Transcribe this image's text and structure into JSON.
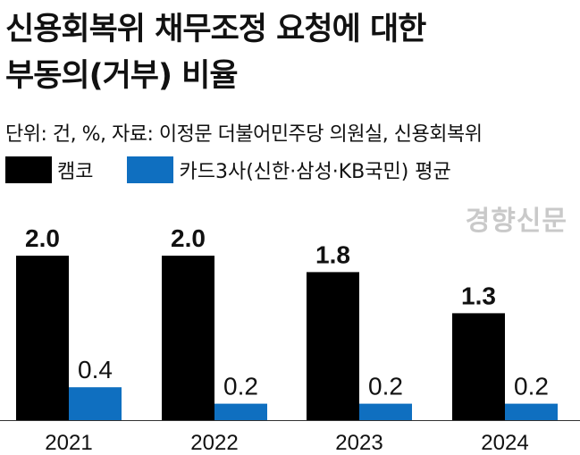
{
  "header": {
    "title_line1": "신용회복위 채무조정 요청에 대한",
    "title_line2": "부동의(거부) 비율",
    "source": "단위: 건, %, 자료: 이정문 더불어민주당 의원실, 신용회복위"
  },
  "watermark": "경향신문",
  "colors": {
    "camco": "#000000",
    "card": "#0f6fc0"
  },
  "chart_data": {
    "type": "bar",
    "categories": [
      "2021",
      "2022",
      "2023",
      "2024"
    ],
    "series": [
      {
        "name": "캠코",
        "values": [
          2.0,
          2.0,
          1.8,
          1.3
        ]
      },
      {
        "name": "카드3사(신한·삼성·KB국민) 평균",
        "values": [
          0.4,
          0.2,
          0.2,
          0.2
        ]
      }
    ],
    "value_labels": [
      [
        "2.0",
        "2.0",
        "1.8",
        "1.3"
      ],
      [
        "0.4",
        "0.2",
        "0.2",
        "0.2"
      ]
    ],
    "ylim": [
      0,
      2.0
    ],
    "grid": false,
    "legend_position": "top-left"
  }
}
